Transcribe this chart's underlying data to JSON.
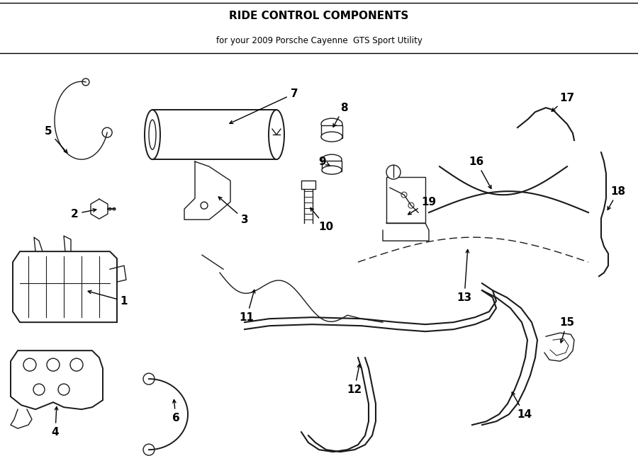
{
  "title": "RIDE CONTROL COMPONENTS",
  "subtitle": "for your 2009 Porsche Cayenne  GTS Sport Utility",
  "bg_color": "#ffffff",
  "line_color": "#1a1a1a",
  "fig_width": 9.0,
  "fig_height": 6.61,
  "dpi": 100,
  "lw_component": 1.4,
  "lw_thin": 1.0,
  "lw_hose": 1.5,
  "label_fontsize": 11,
  "title_fontsize": 11,
  "subtitle_fontsize": 8.5
}
